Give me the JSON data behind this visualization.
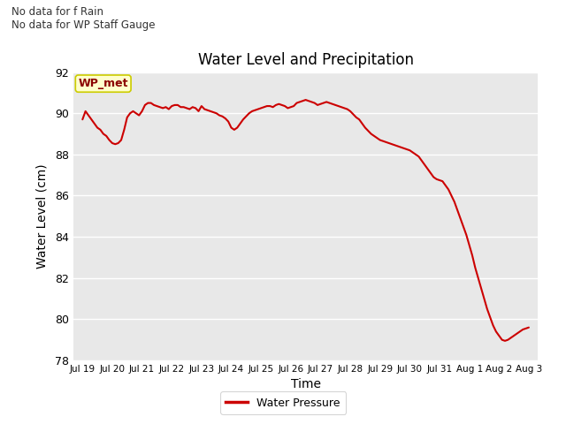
{
  "title": "Water Level and Precipitation",
  "xlabel": "Time",
  "ylabel": "Water Level (cm)",
  "ylim": [
    78,
    92
  ],
  "yticks": [
    78,
    80,
    82,
    84,
    86,
    88,
    90,
    92
  ],
  "line_color": "#cc0000",
  "bg_color": "#e8e8e8",
  "no_data_text1": "No data for f Rain",
  "no_data_text2": "No data for WP Staff Gauge",
  "wp_met_label": "WP_met",
  "legend_label": "Water Pressure",
  "xtick_labels": [
    "Jul 19",
    "Jul 20",
    "Jul 21",
    "Jul 22",
    "Jul 23",
    "Jul 24",
    "Jul 25",
    "Jul 26",
    "Jul 27",
    "Jul 28",
    "Jul 29",
    "Jul 30",
    "Jul 31",
    "Aug 1",
    "Aug 2",
    "Aug 3"
  ],
  "water_data_x": [
    0,
    0.1,
    0.2,
    0.3,
    0.4,
    0.5,
    0.6,
    0.7,
    0.8,
    0.9,
    1.0,
    1.1,
    1.2,
    1.3,
    1.4,
    1.5,
    1.6,
    1.7,
    1.8,
    1.9,
    2.0,
    2.1,
    2.2,
    2.3,
    2.4,
    2.5,
    2.6,
    2.7,
    2.8,
    2.9,
    3.0,
    3.1,
    3.2,
    3.3,
    3.4,
    3.5,
    3.6,
    3.7,
    3.8,
    3.9,
    4.0,
    4.1,
    4.2,
    4.3,
    4.4,
    4.5,
    4.6,
    4.7,
    4.8,
    4.9,
    5.0,
    5.1,
    5.2,
    5.3,
    5.4,
    5.5,
    5.6,
    5.7,
    5.8,
    5.9,
    6.0,
    6.1,
    6.2,
    6.3,
    6.4,
    6.5,
    6.6,
    6.7,
    6.8,
    6.9,
    7.0,
    7.1,
    7.2,
    7.3,
    7.4,
    7.5,
    7.6,
    7.7,
    7.8,
    7.9,
    8.0,
    8.1,
    8.2,
    8.3,
    8.4,
    8.5,
    8.6,
    8.7,
    8.8,
    8.9,
    9.0,
    9.1,
    9.2,
    9.3,
    9.4,
    9.5,
    9.6,
    9.7,
    9.8,
    9.9,
    10.0,
    10.1,
    10.2,
    10.3,
    10.4,
    10.5,
    10.6,
    10.7,
    10.8,
    10.9,
    11.0,
    11.1,
    11.2,
    11.3,
    11.4,
    11.5,
    11.6,
    11.7,
    11.8,
    11.9,
    12.0,
    12.1,
    12.2,
    12.3,
    12.4,
    12.5,
    12.6,
    12.7,
    12.8,
    12.9,
    13.0,
    13.1,
    13.2,
    13.3,
    13.4,
    13.5,
    13.6,
    13.7,
    13.8,
    13.9,
    14.0,
    14.1,
    14.2,
    14.3,
    14.4,
    14.5,
    14.6,
    14.7,
    14.8,
    14.9,
    15.0
  ],
  "water_data_y": [
    89.7,
    90.1,
    89.9,
    89.7,
    89.5,
    89.3,
    89.2,
    89.0,
    88.9,
    88.7,
    88.55,
    88.5,
    88.55,
    88.7,
    89.2,
    89.8,
    90.0,
    90.1,
    90.0,
    89.9,
    90.1,
    90.4,
    90.5,
    90.5,
    90.4,
    90.35,
    90.3,
    90.25,
    90.3,
    90.2,
    90.35,
    90.4,
    90.4,
    90.3,
    90.3,
    90.25,
    90.2,
    90.3,
    90.25,
    90.1,
    90.35,
    90.2,
    90.15,
    90.1,
    90.05,
    90.0,
    89.9,
    89.85,
    89.75,
    89.6,
    89.3,
    89.2,
    89.3,
    89.5,
    89.7,
    89.85,
    90.0,
    90.1,
    90.15,
    90.2,
    90.25,
    90.3,
    90.35,
    90.35,
    90.3,
    90.4,
    90.45,
    90.4,
    90.35,
    90.25,
    90.3,
    90.35,
    90.5,
    90.55,
    90.6,
    90.65,
    90.6,
    90.55,
    90.5,
    90.4,
    90.45,
    90.5,
    90.55,
    90.5,
    90.45,
    90.4,
    90.35,
    90.3,
    90.25,
    90.2,
    90.1,
    89.95,
    89.8,
    89.7,
    89.5,
    89.3,
    89.15,
    89.0,
    88.9,
    88.8,
    88.7,
    88.65,
    88.6,
    88.55,
    88.5,
    88.45,
    88.4,
    88.35,
    88.3,
    88.25,
    88.2,
    88.1,
    88.0,
    87.9,
    87.7,
    87.5,
    87.3,
    87.1,
    86.9,
    86.8,
    86.75,
    86.7,
    86.5,
    86.3,
    86.0,
    85.7,
    85.3,
    84.9,
    84.5,
    84.1,
    83.6,
    83.1,
    82.5,
    82.0,
    81.5,
    81.0,
    80.5,
    80.1,
    79.7,
    79.4,
    79.2,
    79.0,
    78.95,
    79.0,
    79.1,
    79.2,
    79.3,
    79.4,
    79.5,
    79.55,
    79.6
  ]
}
